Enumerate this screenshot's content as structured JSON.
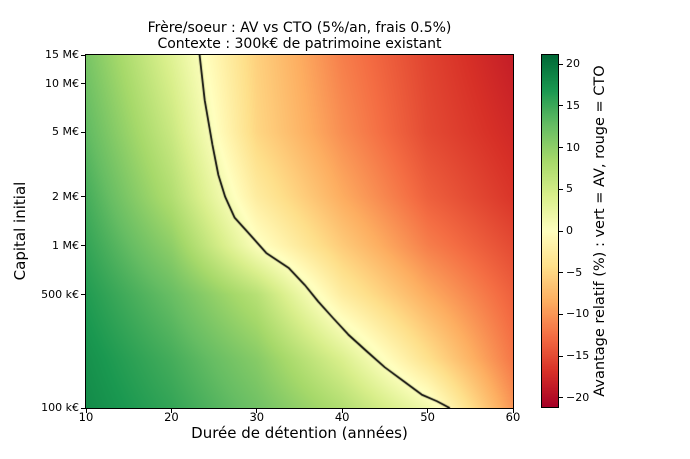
{
  "chart_data": {
    "type": "heatmap",
    "title": "Frère/soeur : AV vs CTO (5%/an, frais 0.5%)",
    "subtitle": "Contexte : 300k€ de patrimoine existant",
    "xlabel": "Durée de détention (années)",
    "ylabel": "Capital initial",
    "colorbar_label": "Avantage relatif (%) : vert = AV, rouge = CTO",
    "x_range": [
      10,
      60
    ],
    "y_range": [
      100000,
      15000000
    ],
    "y_scale": "log",
    "grid": false,
    "x_ticks": [
      {
        "label": "10",
        "value": 10
      },
      {
        "label": "20",
        "value": 20
      },
      {
        "label": "30",
        "value": 30
      },
      {
        "label": "40",
        "value": 40
      },
      {
        "label": "50",
        "value": 50
      },
      {
        "label": "60",
        "value": 60
      }
    ],
    "y_ticks": [
      {
        "label": "15 M€",
        "value": 15000000
      },
      {
        "label": "10 M€",
        "value": 10000000
      },
      {
        "label": "5 M€",
        "value": 5000000
      },
      {
        "label": "2 M€",
        "value": 2000000
      },
      {
        "label": "1 M€",
        "value": 1000000
      },
      {
        "label": "500 k€",
        "value": 500000
      },
      {
        "label": "100 k€",
        "value": 100000
      }
    ],
    "colorbar_ticks": [
      {
        "label": "20",
        "value": 20
      },
      {
        "label": "15",
        "value": 15
      },
      {
        "label": "10",
        "value": 10
      },
      {
        "label": "5",
        "value": 5
      },
      {
        "label": "0",
        "value": 0
      },
      {
        "label": "−5",
        "value": -5
      },
      {
        "label": "−10",
        "value": -10
      },
      {
        "label": "−15",
        "value": -15
      },
      {
        "label": "−20",
        "value": -20
      }
    ],
    "vmin": -21.1,
    "vmax": 21.1,
    "colormap": {
      "name": "RdYlGn",
      "stops": [
        [
          0.0,
          "#a50026"
        ],
        [
          0.1,
          "#d73027"
        ],
        [
          0.2,
          "#f46d43"
        ],
        [
          0.3,
          "#fdae61"
        ],
        [
          0.4,
          "#fee08b"
        ],
        [
          0.5,
          "#ffffbf"
        ],
        [
          0.6,
          "#d9ef8b"
        ],
        [
          0.7,
          "#a6d96a"
        ],
        [
          0.8,
          "#66bd63"
        ],
        [
          0.9,
          "#1a9850"
        ],
        [
          1.0,
          "#006837"
        ]
      ]
    },
    "durations": [
      10,
      20,
      30,
      40,
      50,
      60
    ],
    "capitals": [
      100000,
      200000,
      500000,
      1000000,
      2000000,
      5000000,
      15000000
    ],
    "values": [
      [
        18.0,
        15.5,
        12.0,
        7.5,
        1.5,
        -10.0
      ],
      [
        17.5,
        14.5,
        10.5,
        4.0,
        -4.0,
        -12.0
      ],
      [
        16.5,
        12.5,
        7.0,
        -2.5,
        -8.5,
        -13.5
      ],
      [
        15.5,
        10.0,
        0.5,
        -6.0,
        -11.5,
        -15.0
      ],
      [
        14.5,
        7.5,
        -2.5,
        -8.5,
        -13.5,
        -16.5
      ],
      [
        13.0,
        5.5,
        -5.0,
        -10.5,
        -15.0,
        -17.5
      ],
      [
        11.5,
        3.5,
        -5.5,
        -11.5,
        -15.5,
        -18.5
      ]
    ],
    "zero_contour": [
      [
        23.3,
        15000000
      ],
      [
        23.9,
        7900000
      ],
      [
        24.8,
        4200000
      ],
      [
        25.5,
        2730000
      ],
      [
        26.3,
        2000000
      ],
      [
        27.4,
        1490000
      ],
      [
        29.2,
        1170000
      ],
      [
        31.1,
        904000
      ],
      [
        33.7,
        733000
      ],
      [
        35.6,
        575000
      ],
      [
        37.2,
        453000
      ],
      [
        38.9,
        360000
      ],
      [
        40.7,
        284000
      ],
      [
        42.9,
        223000
      ],
      [
        45.0,
        178000
      ],
      [
        47.2,
        146000
      ],
      [
        49.3,
        121000
      ],
      [
        51.1,
        110000
      ],
      [
        52.6,
        100000
      ]
    ],
    "contour_color": "#000000",
    "background": "#ffffff"
  }
}
